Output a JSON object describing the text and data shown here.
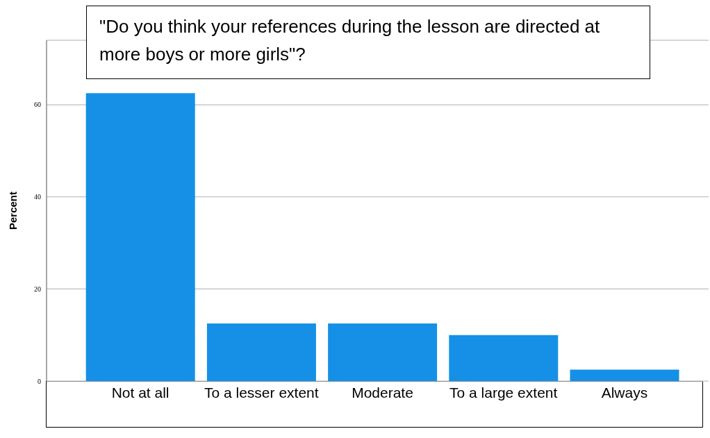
{
  "chart_data": {
    "type": "bar",
    "title": "\"Do you think your references during the lesson are directed at more boys or more girls\"?",
    "categories": [
      "Not at all",
      "To a lesser extent",
      "Moderate",
      "To a large extent",
      "Always"
    ],
    "values": [
      62.5,
      12.5,
      12.5,
      10,
      2.5
    ],
    "color": "#1590e6",
    "ylabel": "Percent",
    "ylim": [
      0,
      74
    ],
    "yticks": [
      0,
      20,
      40,
      60
    ],
    "grid": "y"
  }
}
